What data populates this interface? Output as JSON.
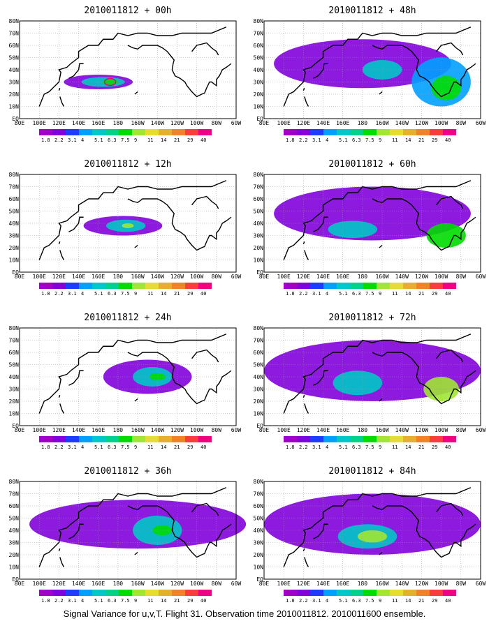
{
  "caption": "Signal Variance for u,v,T. Flight 31. Observation time 2010011812. 2010011600 ensemble.",
  "panels": [
    {
      "title": "2010011812 + 00h",
      "blobs": [
        {
          "lon": 160,
          "lat": 30,
          "rx": 35,
          "ry": 6,
          "level": 1
        },
        {
          "lon": 165,
          "lat": 30,
          "rx": 22,
          "ry": 4,
          "level": 4
        },
        {
          "lon": 172,
          "lat": 30,
          "rx": 8,
          "ry": 2.5,
          "level": 6
        }
      ],
      "contour": true
    },
    {
      "title": "2010011812 + 48h",
      "blobs": [
        {
          "lon": 180,
          "lat": 45,
          "rx": 90,
          "ry": 20,
          "level": 1
        },
        {
          "lon": 260,
          "lat": 30,
          "rx": 30,
          "ry": 20,
          "level": 3
        },
        {
          "lon": 265,
          "lat": 25,
          "rx": 15,
          "ry": 10,
          "level": 6
        },
        {
          "lon": 200,
          "lat": 40,
          "rx": 20,
          "ry": 8,
          "level": 4
        }
      ],
      "contour": false
    },
    {
      "title": "2010011812 + 12h",
      "blobs": [
        {
          "lon": 185,
          "lat": 38,
          "rx": 40,
          "ry": 8,
          "level": 1
        },
        {
          "lon": 188,
          "lat": 38,
          "rx": 20,
          "ry": 5,
          "level": 4
        },
        {
          "lon": 190,
          "lat": 38,
          "rx": 6,
          "ry": 2,
          "level": 7
        }
      ],
      "contour": false
    },
    {
      "title": "2010011812 + 60h",
      "blobs": [
        {
          "lon": 190,
          "lat": 48,
          "rx": 100,
          "ry": 22,
          "level": 1
        },
        {
          "lon": 170,
          "lat": 35,
          "rx": 25,
          "ry": 7,
          "level": 4
        },
        {
          "lon": 265,
          "lat": 30,
          "rx": 20,
          "ry": 10,
          "level": 6
        }
      ],
      "contour": false
    },
    {
      "title": "2010011812 + 24h",
      "blobs": [
        {
          "lon": 210,
          "lat": 40,
          "rx": 45,
          "ry": 14,
          "level": 1
        },
        {
          "lon": 215,
          "lat": 40,
          "rx": 20,
          "ry": 8,
          "level": 4
        },
        {
          "lon": 220,
          "lat": 40,
          "rx": 8,
          "ry": 3,
          "level": 6
        }
      ],
      "contour": false
    },
    {
      "title": "2010011812 + 72h",
      "blobs": [
        {
          "lon": 190,
          "lat": 45,
          "rx": 110,
          "ry": 25,
          "level": 1
        },
        {
          "lon": 175,
          "lat": 35,
          "rx": 25,
          "ry": 10,
          "level": 4
        },
        {
          "lon": 260,
          "lat": 30,
          "rx": 18,
          "ry": 10,
          "level": 7
        }
      ],
      "contour": false
    },
    {
      "title": "2010011812 + 36h",
      "blobs": [
        {
          "lon": 200,
          "lat": 45,
          "rx": 110,
          "ry": 20,
          "level": 1
        },
        {
          "lon": 220,
          "lat": 40,
          "rx": 25,
          "ry": 12,
          "level": 4
        },
        {
          "lon": 225,
          "lat": 40,
          "rx": 10,
          "ry": 4,
          "level": 6
        }
      ],
      "contour": false
    },
    {
      "title": "2010011812 + 84h",
      "blobs": [
        {
          "lon": 190,
          "lat": 45,
          "rx": 110,
          "ry": 25,
          "level": 1
        },
        {
          "lon": 185,
          "lat": 35,
          "rx": 30,
          "ry": 10,
          "level": 4
        },
        {
          "lon": 190,
          "lat": 35,
          "rx": 15,
          "ry": 5,
          "level": 7
        }
      ],
      "contour": false
    }
  ],
  "x_ticks": [
    "80E",
    "100E",
    "120E",
    "140E",
    "160E",
    "180",
    "160W",
    "140W",
    "120W",
    "100W",
    "80W",
    "60W"
  ],
  "y_ticks": [
    "EQ",
    "10N",
    "20N",
    "30N",
    "40N",
    "50N",
    "60N",
    "70N",
    "80N"
  ],
  "legend_levels": [
    "1.8",
    "2.2",
    "3.1",
    "4",
    "5.1",
    "6.3",
    "7.5",
    "9",
    "11",
    "14",
    "21",
    "29",
    "40"
  ],
  "legend_colors": [
    "#a000c8",
    "#8200dc",
    "#1e3cff",
    "#00a0ff",
    "#00c8c8",
    "#00d28c",
    "#00dc00",
    "#a0e632",
    "#e6dc32",
    "#e6af2d",
    "#f08228",
    "#fa3c3c",
    "#f00082"
  ]
}
